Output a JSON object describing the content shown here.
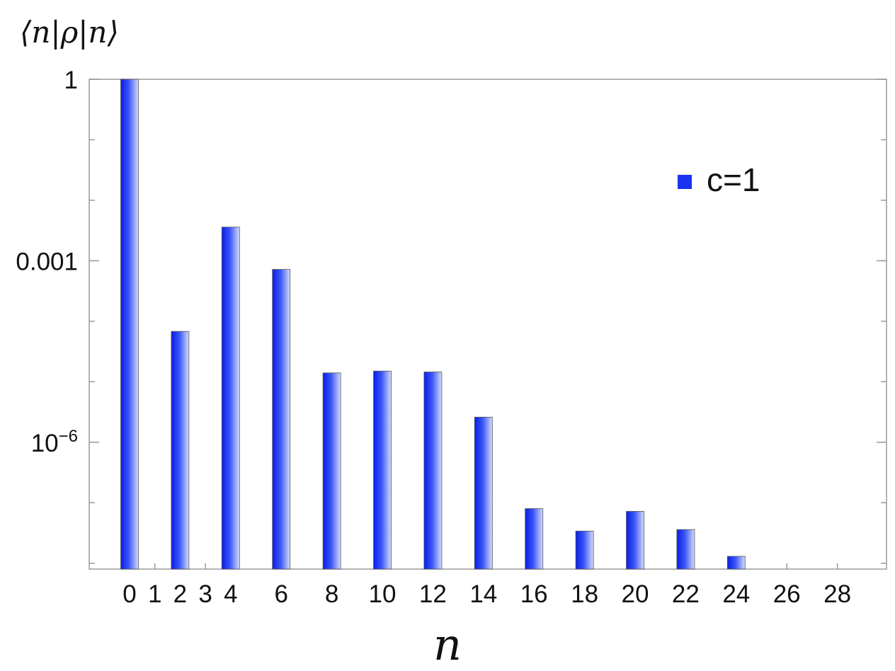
{
  "chart_data": {
    "type": "bar",
    "ylabel": "⟨n|ρ|n⟩",
    "xlabel": "n",
    "yscale": "log",
    "ylim": [
      8e-09,
      1
    ],
    "y_ticks": [
      {
        "value": 1,
        "label": "1"
      },
      {
        "value": 0.001,
        "label": "0.001"
      },
      {
        "value": 1e-06,
        "label_base": "10",
        "label_exp": "−6"
      }
    ],
    "x_tick_labels": [
      0,
      1,
      2,
      3,
      4,
      6,
      8,
      10,
      12,
      14,
      16,
      18,
      20,
      22,
      24,
      26,
      28
    ],
    "series": [
      {
        "name": "c=1",
        "color": "#1a33f0",
        "points": [
          {
            "n": 0,
            "value": 1
          },
          {
            "n": 2,
            "value": 6.8e-05
          },
          {
            "n": 4,
            "value": 0.0036
          },
          {
            "n": 6,
            "value": 0.00072
          },
          {
            "n": 8,
            "value": 1.4e-05
          },
          {
            "n": 10,
            "value": 1.5e-05
          },
          {
            "n": 12,
            "value": 1.45e-05
          },
          {
            "n": 14,
            "value": 2.6e-06
          },
          {
            "n": 16,
            "value": 8e-08
          },
          {
            "n": 18,
            "value": 3.4e-08
          },
          {
            "n": 20,
            "value": 7.2e-08
          },
          {
            "n": 22,
            "value": 3.6e-08
          },
          {
            "n": 24,
            "value": 1.3e-08
          }
        ]
      }
    ],
    "legend_position": "top-right",
    "grid": false
  }
}
